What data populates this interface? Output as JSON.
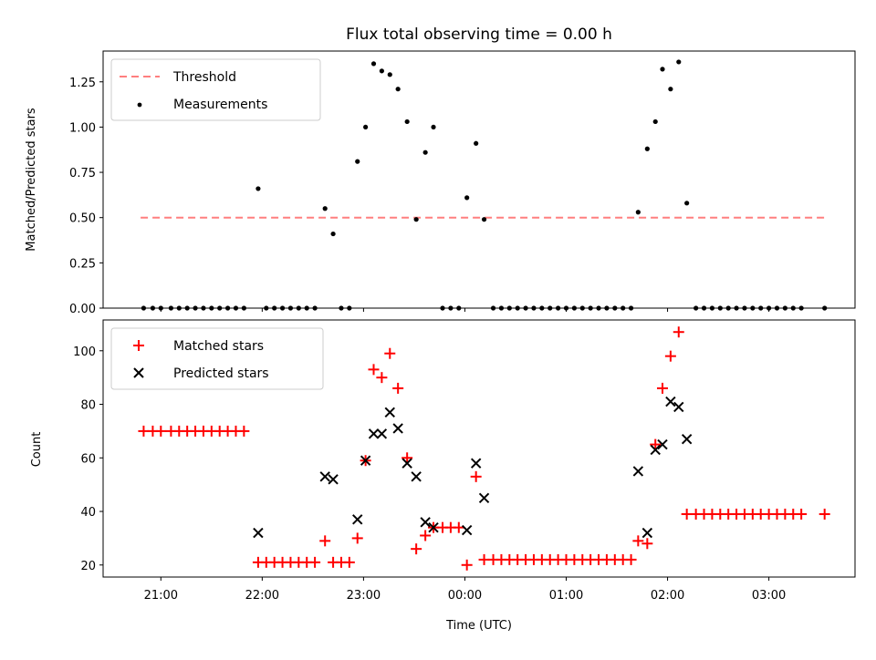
{
  "chart_data": [
    {
      "type": "scatter",
      "title": "Flux total observing time = 0.00 h",
      "xlabel": "",
      "ylabel": "Matched/Predicted stars",
      "ylim": [
        0.0,
        1.42
      ],
      "yticks": [
        "0.00",
        "0.25",
        "0.50",
        "0.75",
        "1.00",
        "1.25"
      ],
      "grid": false,
      "legend_position": "top-left",
      "threshold": {
        "name": "Threshold",
        "value": 0.5,
        "x_range": [
          20.8,
          27.55
        ],
        "color": "#ff7f7f"
      },
      "series": [
        {
          "name": "Measurements",
          "color": "#000000",
          "points": [
            [
              20.83,
              0
            ],
            [
              20.92,
              0
            ],
            [
              21.0,
              0
            ],
            [
              21.1,
              0
            ],
            [
              21.18,
              0
            ],
            [
              21.26,
              0
            ],
            [
              21.34,
              0
            ],
            [
              21.42,
              0
            ],
            [
              21.5,
              0
            ],
            [
              21.58,
              0
            ],
            [
              21.66,
              0
            ],
            [
              21.74,
              0
            ],
            [
              21.82,
              0
            ],
            [
              21.96,
              0.66
            ],
            [
              22.04,
              0
            ],
            [
              22.12,
              0
            ],
            [
              22.2,
              0
            ],
            [
              22.28,
              0
            ],
            [
              22.36,
              0
            ],
            [
              22.44,
              0
            ],
            [
              22.52,
              0
            ],
            [
              22.62,
              0.55
            ],
            [
              22.7,
              0.41
            ],
            [
              22.78,
              0
            ],
            [
              22.86,
              0
            ],
            [
              22.94,
              0.81
            ],
            [
              23.02,
              1.0
            ],
            [
              23.1,
              1.35
            ],
            [
              23.18,
              1.31
            ],
            [
              23.26,
              1.29
            ],
            [
              23.34,
              1.21
            ],
            [
              23.43,
              1.03
            ],
            [
              23.52,
              0.49
            ],
            [
              23.61,
              0.86
            ],
            [
              23.69,
              1.0
            ],
            [
              23.78,
              0
            ],
            [
              23.86,
              0
            ],
            [
              23.94,
              0
            ],
            [
              24.02,
              0.61
            ],
            [
              24.11,
              0.91
            ],
            [
              24.19,
              0.49
            ],
            [
              24.28,
              0
            ],
            [
              24.36,
              0
            ],
            [
              24.44,
              0
            ],
            [
              24.52,
              0
            ],
            [
              24.6,
              0
            ],
            [
              24.68,
              0
            ],
            [
              24.76,
              0
            ],
            [
              24.84,
              0
            ],
            [
              24.92,
              0
            ],
            [
              25.0,
              0
            ],
            [
              25.08,
              0
            ],
            [
              25.16,
              0
            ],
            [
              25.24,
              0
            ],
            [
              25.32,
              0
            ],
            [
              25.4,
              0
            ],
            [
              25.48,
              0
            ],
            [
              25.56,
              0
            ],
            [
              25.64,
              0
            ],
            [
              25.71,
              0.53
            ],
            [
              25.8,
              0.88
            ],
            [
              25.88,
              1.03
            ],
            [
              25.95,
              1.32
            ],
            [
              26.03,
              1.21
            ],
            [
              26.11,
              1.36
            ],
            [
              26.19,
              0.58
            ],
            [
              26.28,
              0
            ],
            [
              26.36,
              0
            ],
            [
              26.44,
              0
            ],
            [
              26.52,
              0
            ],
            [
              26.6,
              0
            ],
            [
              26.68,
              0
            ],
            [
              26.76,
              0
            ],
            [
              26.84,
              0
            ],
            [
              26.92,
              0
            ],
            [
              27.0,
              0
            ],
            [
              27.08,
              0
            ],
            [
              27.16,
              0
            ],
            [
              27.24,
              0
            ],
            [
              27.32,
              0
            ],
            [
              27.55,
              0
            ]
          ]
        }
      ]
    },
    {
      "type": "scatter",
      "title": "",
      "xlabel": "Time (UTC)",
      "ylabel": "Count",
      "ylim": [
        15.5,
        111.5
      ],
      "yticks": [
        "20",
        "40",
        "60",
        "80",
        "100"
      ],
      "xlim": [
        20.43,
        27.85
      ],
      "xticks": [
        "21:00",
        "22:00",
        "23:00",
        "00:00",
        "01:00",
        "02:00",
        "03:00"
      ],
      "grid": false,
      "legend_position": "top-left",
      "series": [
        {
          "name": "Matched stars",
          "color": "#ff0000",
          "marker": "+",
          "points": [
            [
              20.83,
              70
            ],
            [
              20.92,
              70
            ],
            [
              21.0,
              70
            ],
            [
              21.1,
              70
            ],
            [
              21.18,
              70
            ],
            [
              21.26,
              70
            ],
            [
              21.34,
              70
            ],
            [
              21.42,
              70
            ],
            [
              21.5,
              70
            ],
            [
              21.58,
              70
            ],
            [
              21.66,
              70
            ],
            [
              21.74,
              70
            ],
            [
              21.82,
              70
            ],
            [
              21.96,
              21
            ],
            [
              22.04,
              21
            ],
            [
              22.12,
              21
            ],
            [
              22.2,
              21
            ],
            [
              22.28,
              21
            ],
            [
              22.36,
              21
            ],
            [
              22.44,
              21
            ],
            [
              22.52,
              21
            ],
            [
              22.62,
              29
            ],
            [
              22.7,
              21
            ],
            [
              22.78,
              21
            ],
            [
              22.86,
              21
            ],
            [
              22.94,
              30
            ],
            [
              23.02,
              59
            ],
            [
              23.1,
              93
            ],
            [
              23.18,
              90
            ],
            [
              23.26,
              99
            ],
            [
              23.34,
              86
            ],
            [
              23.43,
              60
            ],
            [
              23.52,
              26
            ],
            [
              23.61,
              31
            ],
            [
              23.69,
              34
            ],
            [
              23.78,
              34
            ],
            [
              23.86,
              34
            ],
            [
              23.94,
              34
            ],
            [
              24.02,
              20
            ],
            [
              24.11,
              53
            ],
            [
              24.19,
              22
            ],
            [
              24.28,
              22
            ],
            [
              24.36,
              22
            ],
            [
              24.44,
              22
            ],
            [
              24.52,
              22
            ],
            [
              24.6,
              22
            ],
            [
              24.68,
              22
            ],
            [
              24.76,
              22
            ],
            [
              24.84,
              22
            ],
            [
              24.92,
              22
            ],
            [
              25.0,
              22
            ],
            [
              25.08,
              22
            ],
            [
              25.16,
              22
            ],
            [
              25.24,
              22
            ],
            [
              25.32,
              22
            ],
            [
              25.4,
              22
            ],
            [
              25.48,
              22
            ],
            [
              25.56,
              22
            ],
            [
              25.64,
              22
            ],
            [
              25.71,
              29
            ],
            [
              25.8,
              28
            ],
            [
              25.88,
              65
            ],
            [
              25.95,
              86
            ],
            [
              26.03,
              98
            ],
            [
              26.11,
              107
            ],
            [
              26.19,
              39
            ],
            [
              26.28,
              39
            ],
            [
              26.36,
              39
            ],
            [
              26.44,
              39
            ],
            [
              26.52,
              39
            ],
            [
              26.6,
              39
            ],
            [
              26.68,
              39
            ],
            [
              26.76,
              39
            ],
            [
              26.84,
              39
            ],
            [
              26.92,
              39
            ],
            [
              27.0,
              39
            ],
            [
              27.08,
              39
            ],
            [
              27.16,
              39
            ],
            [
              27.24,
              39
            ],
            [
              27.32,
              39
            ],
            [
              27.55,
              39
            ]
          ]
        },
        {
          "name": "Predicted stars",
          "color": "#000000",
          "marker": "x",
          "points": [
            [
              21.96,
              32
            ],
            [
              22.62,
              53
            ],
            [
              22.7,
              52
            ],
            [
              22.94,
              37
            ],
            [
              23.02,
              59
            ],
            [
              23.1,
              69
            ],
            [
              23.18,
              69
            ],
            [
              23.26,
              77
            ],
            [
              23.34,
              71
            ],
            [
              23.43,
              58
            ],
            [
              23.52,
              53
            ],
            [
              23.61,
              36
            ],
            [
              23.69,
              34
            ],
            [
              24.02,
              33
            ],
            [
              24.11,
              58
            ],
            [
              24.19,
              45
            ],
            [
              25.71,
              55
            ],
            [
              25.8,
              32
            ],
            [
              25.88,
              63
            ],
            [
              25.95,
              65
            ],
            [
              26.03,
              81
            ],
            [
              26.11,
              79
            ],
            [
              26.19,
              67
            ]
          ]
        }
      ]
    }
  ]
}
